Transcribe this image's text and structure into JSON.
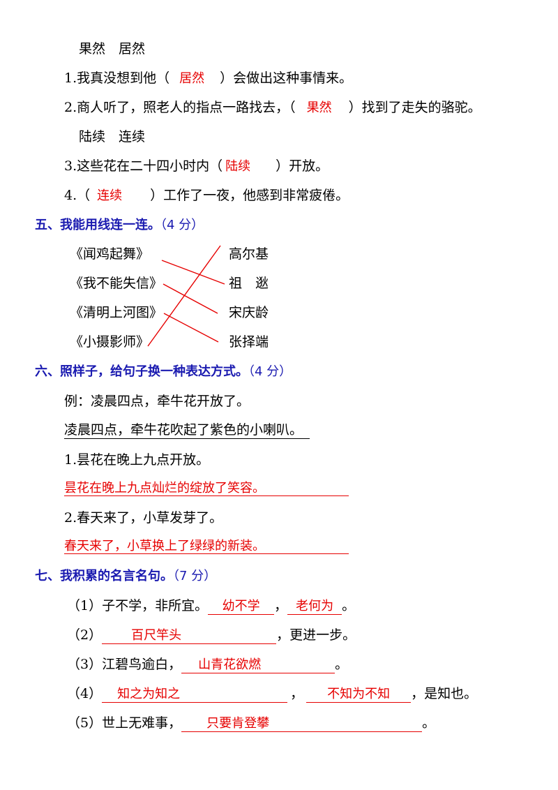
{
  "section4": {
    "pair1": "果然　居然",
    "q1": {
      "num": "1.",
      "before": "我真没想到他（",
      "answer": "居然",
      "after": "）会做出这种事情来。"
    },
    "q2": {
      "num": "2.",
      "before": "商人听了，照老人的指点一路找去，（",
      "answer": "果然",
      "after": "）找到了走失的骆驼。"
    },
    "pair2": "陆续　连续",
    "q3": {
      "num": "3.",
      "before": "这些花在二十四小时内（",
      "answer": "陆续",
      "after": "）开放。"
    },
    "q4": {
      "num": "4.",
      "before": "（",
      "answer": "连续",
      "after": "）工作了一夜，他感到非常疲倦。"
    }
  },
  "section5": {
    "title": "五、我能用线连一连。",
    "score": "（4 分）",
    "left": [
      "《闻鸡起舞》",
      "《我不能失信》",
      "《清明上河图》",
      "《小摄影师》"
    ],
    "right": [
      "高尔基",
      "祖　逖",
      "宋庆龄",
      "张择端"
    ],
    "matches": [
      [
        0,
        1
      ],
      [
        1,
        2
      ],
      [
        2,
        3
      ],
      [
        3,
        0
      ]
    ],
    "line_color": "#e60000"
  },
  "section6": {
    "title": "六、照样子，给句子换一种表达方式。",
    "score": "（4 分）",
    "example_label": "例：凌晨四点，牵牛花开放了。",
    "example_answer": "凌晨四点，牵牛花吹起了紫色的小喇叭。",
    "q1": "1.昙花在晚上九点开放。",
    "a1": "昙花在晚上九点灿烂的绽放了笑容。",
    "q2": "2.春天来了，小草发芽了。",
    "a2": "春天来了，小草换上了绿绿的新装。"
  },
  "section7": {
    "title": "七、我积累的名言名句。",
    "score": "（7 分）",
    "l1": {
      "num": "（1）",
      "text": "子不学，非所宜。",
      "a1": "幼不学",
      "sep": "，",
      "a2": "老何为",
      "end": "。"
    },
    "l2": {
      "num": "（2）",
      "a1": "百尺竿头",
      "end": "，更进一步。"
    },
    "l3": {
      "num": "（3）",
      "text": "江碧鸟逾白，",
      "a1": "山青花欲燃",
      "end": "。"
    },
    "l4": {
      "num": "（4）",
      "a1": "知之为知之",
      "sep": "，",
      "a2": "不知为不知",
      "end": "，是知也。"
    },
    "l5": {
      "num": "（5）",
      "text": "世上无难事，",
      "a1": "只要肯登攀",
      "end": "。"
    }
  }
}
